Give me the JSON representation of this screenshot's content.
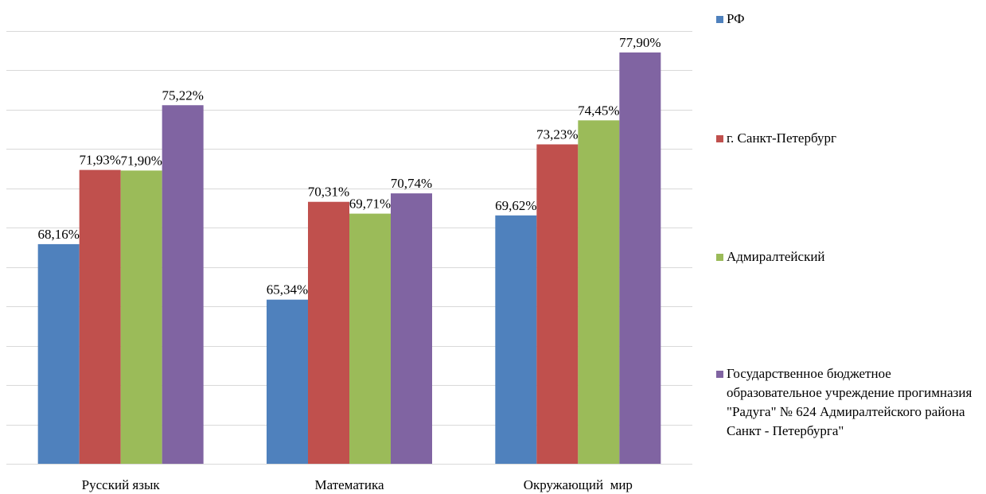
{
  "chart_data": {
    "type": "bar",
    "categories": [
      "Русский язык",
      "Математика",
      "Окружающий  мир"
    ],
    "series": [
      {
        "name": "РФ",
        "color": "#4F81BD",
        "values": [
          68.16,
          65.34,
          69.62
        ],
        "labels": [
          "68,16%",
          "65,34%",
          "69,62%"
        ]
      },
      {
        "name": "г. Санкт-Петербург",
        "color": "#C0504D",
        "values": [
          71.93,
          70.31,
          73.23
        ],
        "labels": [
          "71,93%",
          "70,31%",
          "73,23%"
        ]
      },
      {
        "name": "Адмиралтейский",
        "color": "#9BBB59",
        "values": [
          71.9,
          69.71,
          74.45
        ],
        "labels": [
          "71,90%",
          "69,71%",
          "74,45%"
        ]
      },
      {
        "name": "Государственное бюджетное образовательное учреждение прогимназия \"Радуга\" № 624 Адмиралтейского района Санкт - Петербурга\"",
        "color": "#8064A2",
        "values": [
          75.22,
          70.74,
          77.9
        ],
        "labels": [
          "75,22%",
          "70,74%",
          "77,90%"
        ]
      }
    ],
    "ylim": [
      57,
      80
    ],
    "y_gridline_step": 2,
    "grid": true,
    "legend_position": "right",
    "gridline_color": "#D9D9D9"
  }
}
